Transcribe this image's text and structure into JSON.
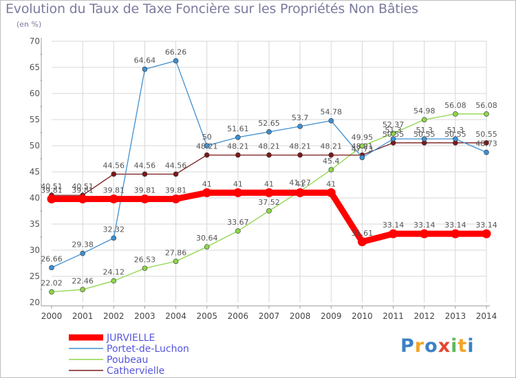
{
  "title": "Evolution du Taux de Taxe Foncière sur les Propriétés Non Bâties",
  "subtitle": "(en %)",
  "logo": {
    "text": "Proxiti",
    "letters": [
      "P",
      "r",
      "o",
      "x",
      "i",
      "t",
      "i"
    ],
    "colors": [
      "#3b82c4",
      "#f2a428",
      "#3b82c4",
      "#e8452e",
      "#5cb85c",
      "#f2a428",
      "#3b82c4"
    ]
  },
  "chart_data": {
    "type": "line",
    "title": "Evolution du Taux de Taxe Foncière sur les Propriétés Non Bâties",
    "ylabel": "(en %)",
    "xlabel": "",
    "categories": [
      "2000",
      "2001",
      "2002",
      "2003",
      "2004",
      "2005",
      "2006",
      "2007",
      "2008",
      "2009",
      "2010",
      "2011",
      "2012",
      "2013",
      "2014"
    ],
    "ylim": [
      20,
      70
    ],
    "yticks": [
      20,
      25,
      30,
      35,
      40,
      45,
      50,
      55,
      60,
      65,
      70
    ],
    "grid": true,
    "legend_position": "bottom-left",
    "series": [
      {
        "name": "JURVIELLE",
        "color": "#ff0000",
        "values": [
          39.81,
          39.81,
          39.81,
          39.81,
          39.81,
          41,
          41,
          41,
          41,
          41,
          31.61,
          33.14,
          33.14,
          33.14,
          33.14
        ],
        "labels": [
          "39.81",
          "39.81",
          "39.81",
          "39.81",
          "39.81",
          "41",
          "41",
          "41",
          "41",
          "41",
          "31.61",
          "33.14",
          "33.14",
          "33.14",
          "33.14"
        ]
      },
      {
        "name": "Portet-de-Luchon",
        "color": "#3f8fd0",
        "values": [
          26.66,
          29.38,
          32.32,
          64.64,
          66.26,
          50,
          51.61,
          52.65,
          53.7,
          54.78,
          47.73,
          51.3,
          51.3,
          51.3,
          48.73
        ],
        "labels": [
          "26.66",
          "29.38",
          "32.32",
          "64.64",
          "66.26",
          "50",
          "51.61",
          "52.65",
          "53.7",
          "54.78",
          "47.73",
          "51.3",
          "51.3",
          "51.3",
          "48.73"
        ]
      },
      {
        "name": "Poubeau",
        "color": "#8ed64a",
        "values": [
          22.02,
          22.46,
          24.12,
          26.53,
          27.86,
          30.64,
          33.67,
          37.52,
          41.27,
          45.4,
          49.95,
          52.37,
          54.98,
          56.08,
          56.08
        ],
        "labels": [
          "22.02",
          "22.46",
          "24.12",
          "26.53",
          "27.86",
          "30.64",
          "33.67",
          "37.52",
          "41.27",
          "45.4",
          "49.95",
          "52.37",
          "54.98",
          "56.08",
          "56.08"
        ]
      },
      {
        "name": "Cathervielle",
        "color": "#7a1a1a",
        "values": [
          40.51,
          40.51,
          44.56,
          44.56,
          44.56,
          48.21,
          48.21,
          48.21,
          48.21,
          48.21,
          48.21,
          50.55,
          50.55,
          50.55,
          50.55
        ],
        "labels": [
          "40.51",
          "40.51",
          "44.56",
          "44.56",
          "44.56",
          "48.21",
          "48.21",
          "48.21",
          "48.21",
          "48.21",
          "48.21",
          "50.55",
          "50.55",
          "50.55",
          "50.55"
        ]
      }
    ]
  }
}
